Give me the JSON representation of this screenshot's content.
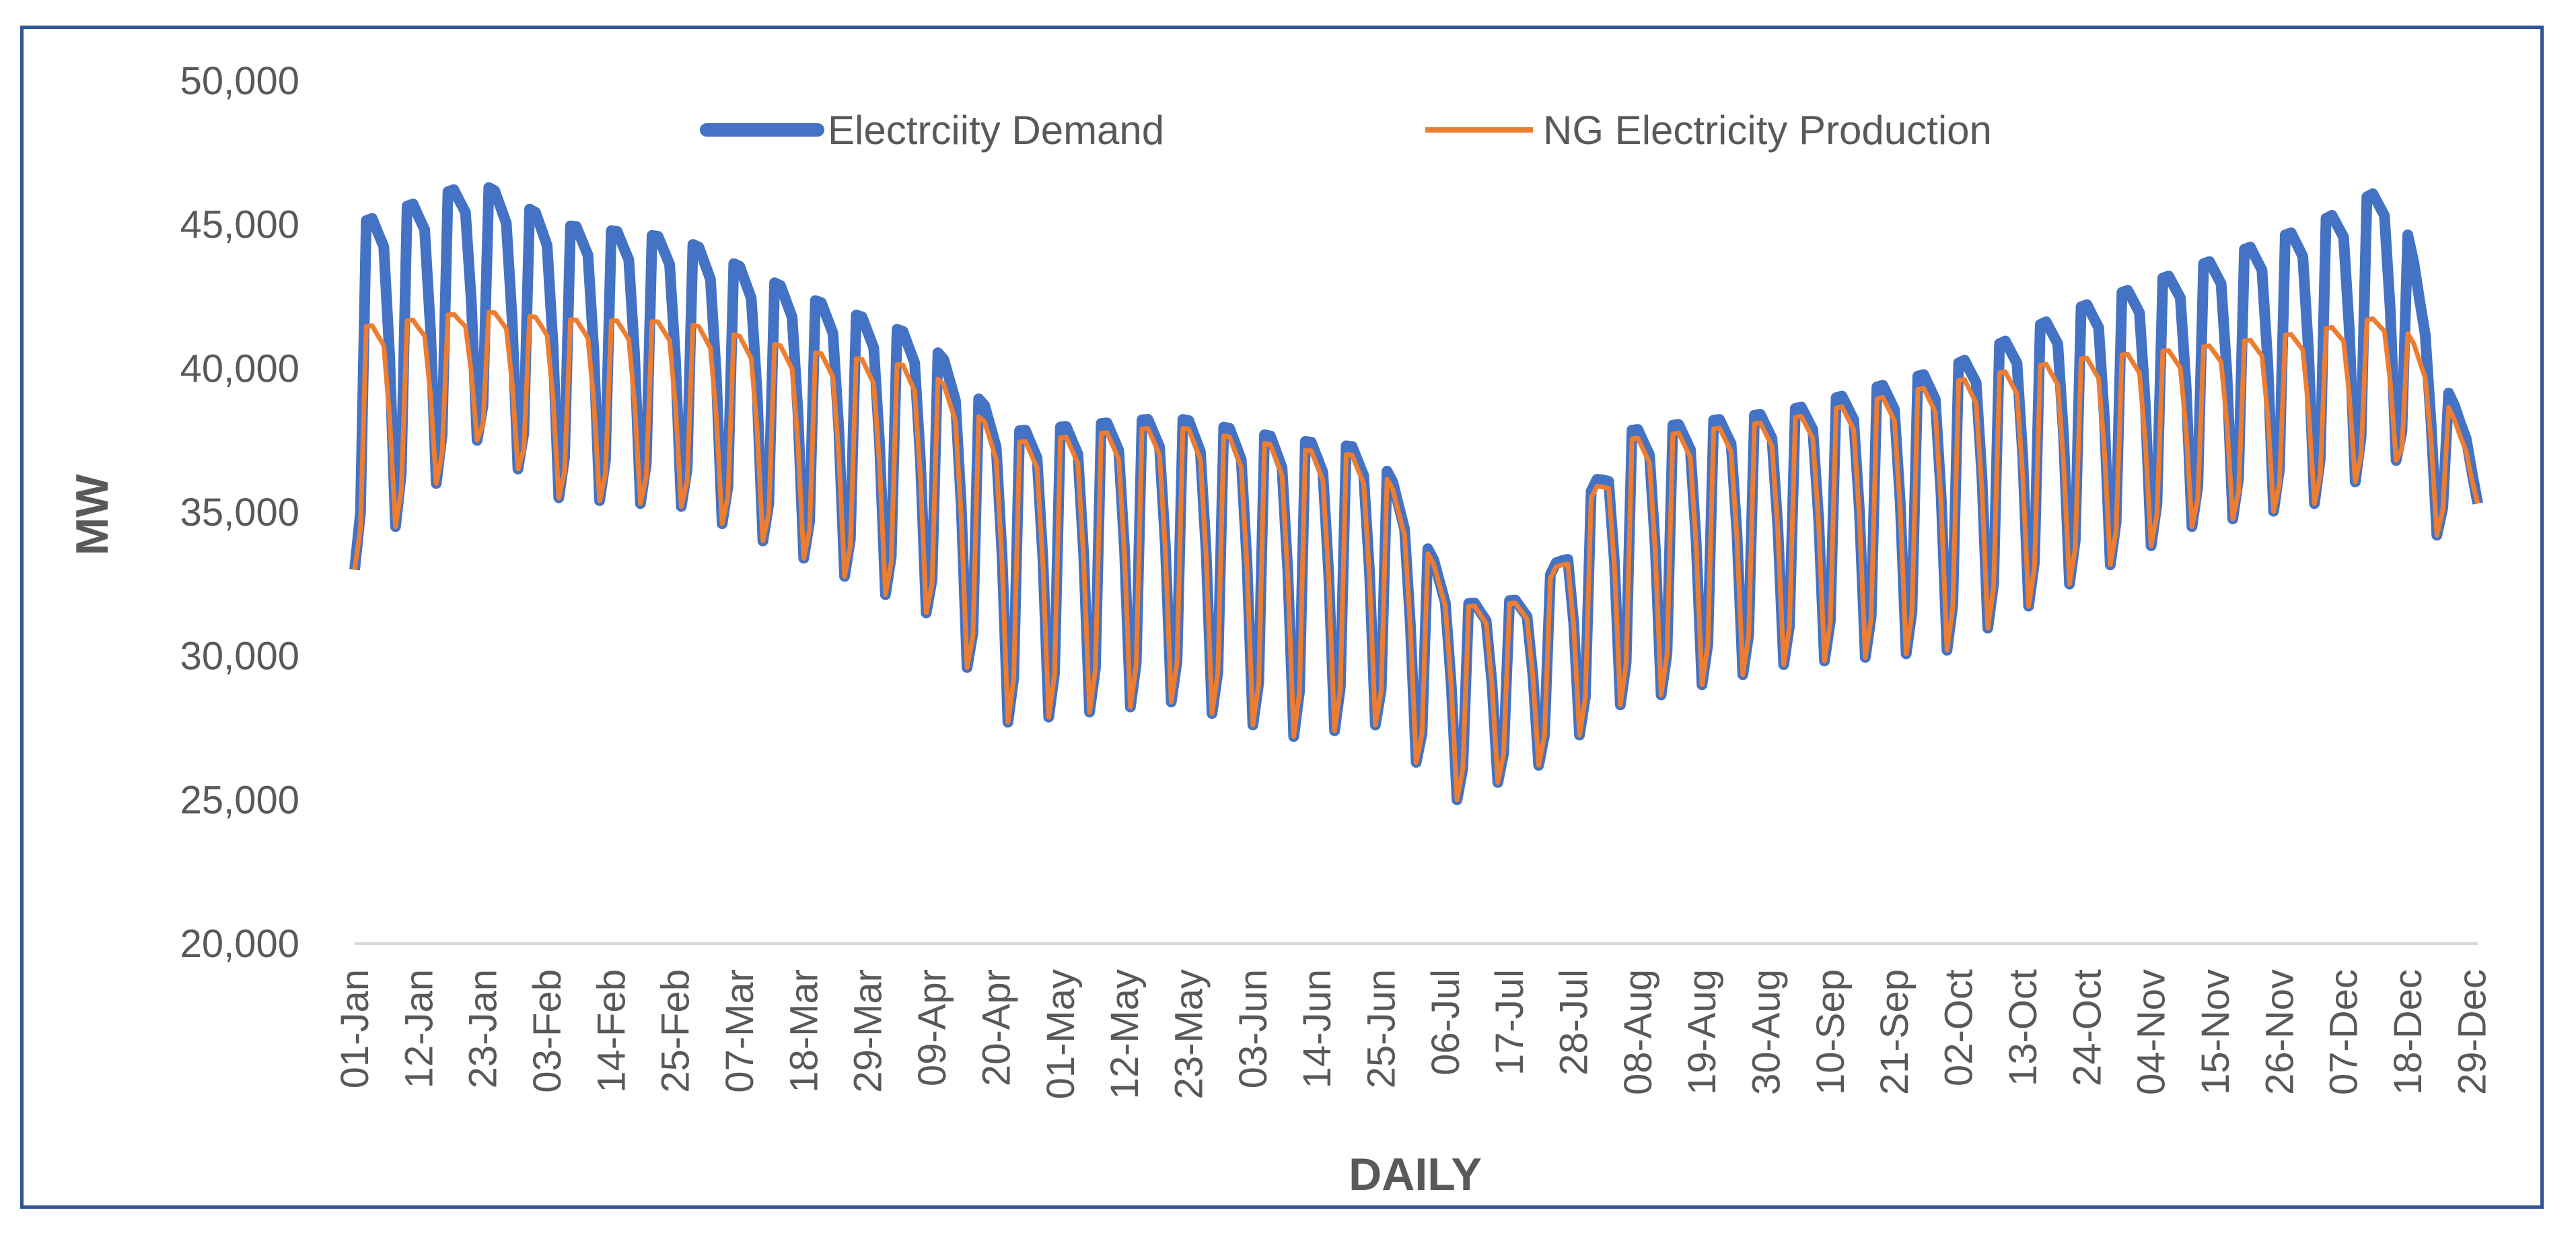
{
  "chart_data": {
    "type": "line",
    "title": "",
    "xlabel": "DAILY",
    "ylabel": "MW",
    "ylim": [
      20000,
      50000
    ],
    "yticks": [
      20000,
      25000,
      30000,
      35000,
      40000,
      45000,
      50000
    ],
    "ytick_labels": [
      "20,000",
      "25,000",
      "30,000",
      "35,000",
      "40,000",
      "45,000",
      "50,000"
    ],
    "xtick_labels": [
      "01-Jan",
      "12-Jan",
      "23-Jan",
      "03-Feb",
      "14-Feb",
      "25-Feb",
      "07-Mar",
      "18-Mar",
      "29-Mar",
      "09-Apr",
      "20-Apr",
      "01-May",
      "12-May",
      "23-May",
      "03-Jun",
      "14-Jun",
      "25-Jun",
      "06-Jul",
      "17-Jul",
      "28-Jul",
      "08-Aug",
      "19-Aug",
      "30-Aug",
      "10-Sep",
      "21-Sep",
      "02-Oct",
      "13-Oct",
      "24-Oct",
      "04-Nov",
      "15-Nov",
      "26-Nov",
      "07-Dec",
      "18-Dec",
      "29-Dec"
    ],
    "grid": false,
    "legend_position": "top",
    "weekly_anchors": [
      {
        "day": 0,
        "demand_weekday": 45000,
        "ng_weekday": 41400,
        "demand_weekend": 33000,
        "ng_weekend": 33000
      },
      {
        "day": 21,
        "demand_weekday": 46500,
        "ng_weekday": 42000,
        "demand_weekend": 37500,
        "ng_weekend": 37500
      },
      {
        "day": 35,
        "demand_weekday": 45000,
        "ng_weekday": 41700,
        "demand_weekend": 35500,
        "ng_weekend": 35500
      },
      {
        "day": 56,
        "demand_weekday": 44500,
        "ng_weekday": 41600,
        "demand_weekend": 35200,
        "ng_weekend": 35200
      },
      {
        "day": 77,
        "demand_weekday": 42500,
        "ng_weekday": 40600,
        "demand_weekend": 33400,
        "ng_weekend": 33400
      },
      {
        "day": 98,
        "demand_weekday": 41000,
        "ng_weekday": 40000,
        "demand_weekend": 31500,
        "ng_weekend": 31500
      },
      {
        "day": 112,
        "demand_weekday": 37800,
        "ng_weekday": 37400,
        "demand_weekend": 27700,
        "ng_weekend": 27700
      },
      {
        "day": 140,
        "demand_weekday": 38300,
        "ng_weekday": 38000,
        "demand_weekend": 28400,
        "ng_weekend": 28400
      },
      {
        "day": 161,
        "demand_weekday": 37500,
        "ng_weekday": 37200,
        "demand_weekend": 27200,
        "ng_weekend": 27200
      },
      {
        "day": 175,
        "demand_weekday": 37200,
        "ng_weekday": 36900,
        "demand_weekend": 27600,
        "ng_weekend": 27600
      },
      {
        "day": 189,
        "demand_weekday": 31800,
        "ng_weekday": 31700,
        "demand_weekend": 25000,
        "ng_weekend": 25000
      },
      {
        "day": 203,
        "demand_weekday": 32000,
        "ng_weekday": 31900,
        "demand_weekend": 26200,
        "ng_weekend": 26200
      },
      {
        "day": 217,
        "demand_weekday": 37800,
        "ng_weekday": 37500,
        "demand_weekend": 28300,
        "ng_weekend": 28300
      },
      {
        "day": 245,
        "demand_weekday": 38500,
        "ng_weekday": 38200,
        "demand_weekend": 29700,
        "ng_weekend": 29700
      },
      {
        "day": 273,
        "demand_weekday": 40000,
        "ng_weekday": 39500,
        "demand_weekend": 30200,
        "ng_weekend": 30200
      },
      {
        "day": 294,
        "demand_weekday": 42000,
        "ng_weekday": 40300,
        "demand_weekend": 32500,
        "ng_weekend": 32500
      },
      {
        "day": 315,
        "demand_weekday": 43500,
        "ng_weekday": 40700,
        "demand_weekend": 34500,
        "ng_weekend": 34500
      },
      {
        "day": 336,
        "demand_weekday": 45000,
        "ng_weekday": 41300,
        "demand_weekend": 35300,
        "ng_weekend": 35300
      },
      {
        "day": 350,
        "demand_weekday": 46500,
        "ng_weekday": 41900,
        "demand_weekend": 36800,
        "ng_weekend": 36800
      },
      {
        "day": 357,
        "demand_weekday": 40000,
        "ng_weekday": 39500,
        "demand_weekend": 34200,
        "ng_weekend": 34200
      },
      {
        "day": 364,
        "demand_weekday": 37000,
        "ng_weekday": 36500,
        "demand_weekend": 35300,
        "ng_weekend": 35300
      }
    ],
    "series": [
      {
        "name": "Electrciity Demand",
        "color": "#4472c4"
      },
      {
        "name": "NG Electricity Production",
        "color": "#ed7d31"
      }
    ]
  }
}
